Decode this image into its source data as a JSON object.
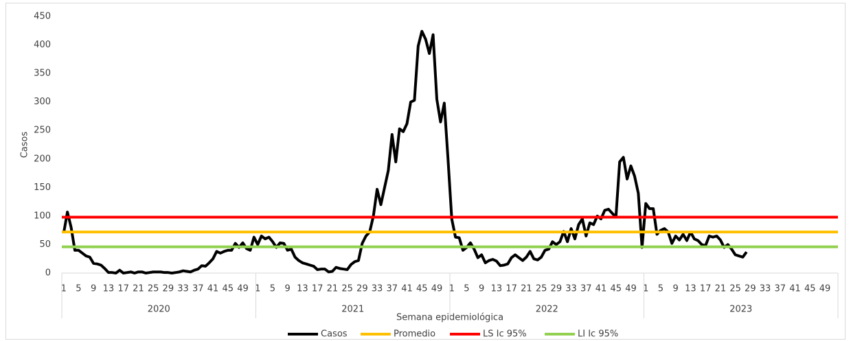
{
  "chart_data": {
    "type": "line",
    "y_label": "Casos",
    "x_label": "Semana epidemiológica",
    "ylim": [
      0,
      450
    ],
    "yticks": [
      0,
      50,
      100,
      150,
      200,
      250,
      300,
      350,
      400,
      450
    ],
    "grid": false,
    "legend": "bottom",
    "years": [
      "2020",
      "2021",
      "2022",
      "2023"
    ],
    "categories": [
      "1",
      null,
      null,
      null,
      "5",
      null,
      null,
      null,
      "9",
      null,
      null,
      null,
      "13",
      null,
      null,
      null,
      "17",
      null,
      null,
      null,
      "21",
      null,
      null,
      null,
      "25",
      null,
      null,
      null,
      "29",
      null,
      null,
      null,
      "33",
      null,
      null,
      null,
      "37",
      null,
      null,
      null,
      "41",
      null,
      null,
      null,
      "45",
      null,
      null,
      null,
      "49",
      null,
      null,
      null,
      "1",
      null,
      null,
      null,
      "5",
      null,
      null,
      null,
      "9",
      null,
      null,
      null,
      "13",
      null,
      null,
      null,
      "17",
      null,
      null,
      null,
      "21",
      null,
      null,
      null,
      "25",
      null,
      null,
      null,
      "29",
      null,
      null,
      null,
      "33",
      null,
      null,
      null,
      "37",
      null,
      null,
      null,
      "41",
      null,
      null,
      null,
      "45",
      null,
      null,
      null,
      "49",
      null,
      null,
      null,
      "1",
      null,
      null,
      null,
      "5",
      null,
      null,
      null,
      "9",
      null,
      null,
      null,
      "13",
      null,
      null,
      null,
      "17",
      null,
      null,
      null,
      "21",
      null,
      null,
      null,
      "25",
      null,
      null,
      null,
      "29",
      null,
      null,
      null,
      "33",
      null,
      null,
      null,
      "37",
      null,
      null,
      null,
      "41",
      null,
      null,
      null,
      "45",
      null,
      null,
      null,
      "49",
      null,
      null,
      null,
      "1",
      null,
      null,
      null,
      "5",
      null,
      null,
      null,
      "9",
      null,
      null,
      null,
      "13",
      null,
      null,
      null,
      "17",
      null,
      null,
      null,
      "21",
      null,
      null,
      null,
      "25",
      null,
      null,
      null,
      "29",
      null,
      null,
      null,
      "33",
      null,
      null,
      null,
      "37",
      null,
      null,
      null,
      "41",
      null,
      null,
      null,
      "45",
      null,
      null,
      null,
      "49",
      null,
      null,
      null
    ],
    "series": [
      {
        "name": "Casos",
        "color": "#000000",
        "values": [
          70,
          107,
          80,
          40,
          40,
          35,
          30,
          28,
          17,
          16,
          14,
          8,
          1,
          1,
          0,
          5,
          0,
          1,
          2,
          0,
          2,
          2,
          0,
          1,
          2,
          2,
          2,
          1,
          1,
          0,
          1,
          2,
          4,
          3,
          2,
          5,
          7,
          13,
          12,
          18,
          25,
          38,
          35,
          38,
          40,
          40,
          52,
          45,
          53,
          43,
          40,
          63,
          50,
          65,
          60,
          63,
          55,
          45,
          53,
          52,
          40,
          42,
          28,
          22,
          18,
          16,
          14,
          12,
          6,
          7,
          7,
          2,
          3,
          10,
          8,
          7,
          6,
          15,
          20,
          22,
          52,
          65,
          72,
          100,
          147,
          120,
          150,
          180,
          243,
          195,
          253,
          248,
          262,
          300,
          303,
          398,
          424,
          410,
          385,
          418,
          305,
          265,
          298,
          200,
          95,
          63,
          62,
          40,
          45,
          53,
          42,
          27,
          32,
          18,
          22,
          24,
          21,
          13,
          14,
          16,
          27,
          32,
          27,
          22,
          28,
          38,
          25,
          23,
          28,
          40,
          42,
          55,
          50,
          55,
          73,
          55,
          78,
          60,
          85,
          95,
          65,
          88,
          85,
          100,
          95,
          110,
          112,
          105,
          98,
          195,
          203,
          165,
          188,
          170,
          140,
          45,
          122,
          113,
          113,
          68,
          75,
          78,
          72,
          52,
          65,
          58,
          68,
          57,
          72,
          60,
          57,
          50,
          48,
          65,
          63,
          65,
          58,
          45,
          50,
          42,
          32,
          30,
          28,
          37,
          null,
          null,
          null,
          null,
          null,
          null,
          null,
          null,
          null,
          null,
          null,
          null,
          null,
          null,
          null,
          null,
          null,
          null,
          null,
          null,
          null,
          null,
          null,
          null
        ]
      },
      {
        "name": "Promedio",
        "color": "#ffc000",
        "value": 72
      },
      {
        "name": "LS Ic 95%",
        "color": "#ff0000",
        "value": 98
      },
      {
        "name": "LI Ic 95%",
        "color": "#92d050",
        "value": 46
      }
    ]
  }
}
